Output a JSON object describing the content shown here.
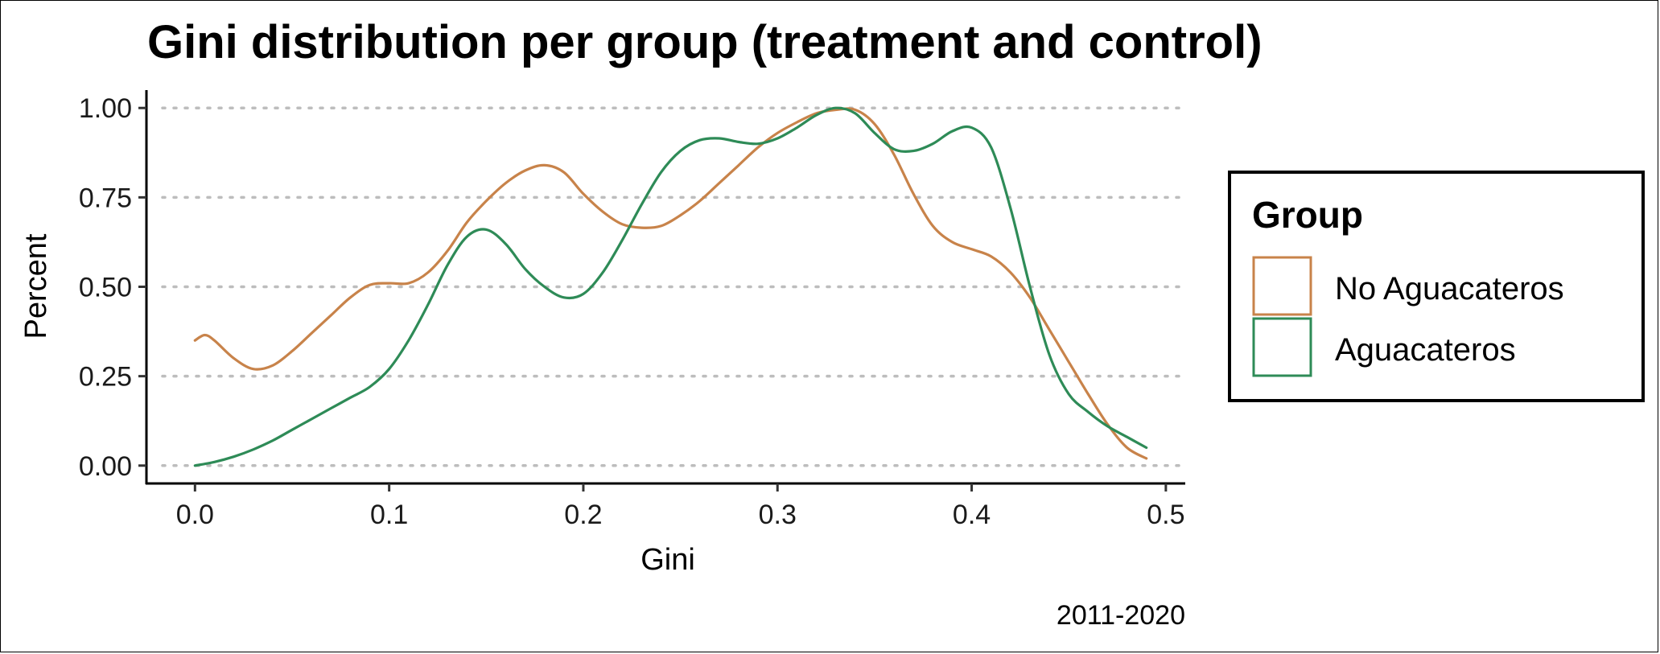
{
  "chart_data": {
    "type": "line",
    "title": "Gini distribution per group (treatment and control)",
    "xlabel": "Gini",
    "ylabel": "Percent",
    "caption": "2011-2020",
    "xlim": [
      -0.025,
      0.51
    ],
    "ylim": [
      -0.05,
      1.05
    ],
    "x_ticks": [
      0.0,
      0.1,
      0.2,
      0.3,
      0.4,
      0.5
    ],
    "x_tick_labels": [
      "0.0",
      "0.1",
      "0.2",
      "0.3",
      "0.4",
      "0.5"
    ],
    "y_ticks": [
      0.0,
      0.25,
      0.5,
      0.75,
      1.0
    ],
    "y_tick_labels": [
      "0.00",
      "0.25",
      "0.50",
      "0.75",
      "1.00"
    ],
    "grid": "horizontal dotted",
    "legend": {
      "title": "Group",
      "placement": "right",
      "entries": [
        "No Aguacateros",
        "Aguacateros"
      ]
    },
    "series": [
      {
        "name": "No Aguacateros",
        "color": "#C8834A",
        "x": [
          0.0,
          0.005,
          0.01,
          0.02,
          0.03,
          0.04,
          0.05,
          0.06,
          0.07,
          0.08,
          0.09,
          0.1,
          0.11,
          0.12,
          0.13,
          0.14,
          0.15,
          0.16,
          0.17,
          0.18,
          0.19,
          0.2,
          0.21,
          0.22,
          0.23,
          0.24,
          0.25,
          0.26,
          0.27,
          0.28,
          0.29,
          0.3,
          0.31,
          0.32,
          0.33,
          0.34,
          0.35,
          0.36,
          0.37,
          0.38,
          0.39,
          0.4,
          0.41,
          0.42,
          0.43,
          0.44,
          0.45,
          0.46,
          0.47,
          0.48,
          0.49
        ],
        "y": [
          0.35,
          0.365,
          0.35,
          0.3,
          0.27,
          0.28,
          0.32,
          0.37,
          0.42,
          0.47,
          0.505,
          0.51,
          0.51,
          0.54,
          0.6,
          0.68,
          0.74,
          0.79,
          0.825,
          0.84,
          0.82,
          0.76,
          0.71,
          0.675,
          0.665,
          0.67,
          0.7,
          0.74,
          0.79,
          0.84,
          0.89,
          0.93,
          0.96,
          0.985,
          0.995,
          0.995,
          0.955,
          0.87,
          0.76,
          0.67,
          0.625,
          0.605,
          0.585,
          0.54,
          0.47,
          0.38,
          0.29,
          0.2,
          0.115,
          0.05,
          0.02
        ]
      },
      {
        "name": "Aguacateros",
        "color": "#2E8B57",
        "x": [
          0.0,
          0.01,
          0.02,
          0.03,
          0.04,
          0.05,
          0.06,
          0.07,
          0.08,
          0.09,
          0.1,
          0.11,
          0.12,
          0.13,
          0.14,
          0.15,
          0.16,
          0.17,
          0.18,
          0.19,
          0.2,
          0.21,
          0.22,
          0.23,
          0.24,
          0.25,
          0.26,
          0.27,
          0.28,
          0.29,
          0.3,
          0.31,
          0.32,
          0.33,
          0.34,
          0.35,
          0.36,
          0.37,
          0.38,
          0.39,
          0.4,
          0.41,
          0.42,
          0.43,
          0.44,
          0.45,
          0.46,
          0.47,
          0.48,
          0.49
        ],
        "y": [
          0.0,
          0.01,
          0.025,
          0.045,
          0.07,
          0.1,
          0.13,
          0.16,
          0.19,
          0.22,
          0.27,
          0.35,
          0.45,
          0.56,
          0.64,
          0.66,
          0.62,
          0.55,
          0.5,
          0.47,
          0.48,
          0.54,
          0.63,
          0.73,
          0.82,
          0.88,
          0.91,
          0.915,
          0.905,
          0.9,
          0.915,
          0.945,
          0.98,
          1.0,
          0.985,
          0.93,
          0.885,
          0.88,
          0.9,
          0.935,
          0.945,
          0.89,
          0.72,
          0.5,
          0.31,
          0.2,
          0.15,
          0.11,
          0.08,
          0.05
        ]
      }
    ]
  }
}
